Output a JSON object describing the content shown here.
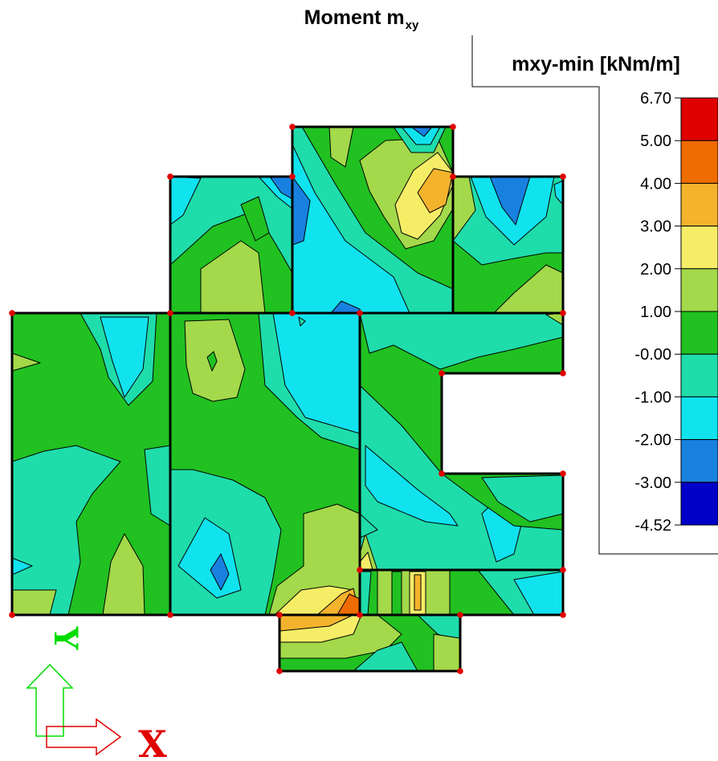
{
  "chart_data": {
    "type": "heatmap",
    "title_main": "Moment m",
    "title_subscript": "xy",
    "legend": {
      "title": "mxy-min [kNm/m]",
      "ticks": [
        "6.70",
        "5.00",
        "4.00",
        "3.00",
        "2.00",
        "1.00",
        "-0.00",
        "-1.00",
        "-2.00",
        "-3.00",
        "-4.52"
      ],
      "bands": [
        {
          "from": 5.0,
          "to": 6.7,
          "color": "#e00000"
        },
        {
          "from": 4.0,
          "to": 5.0,
          "color": "#ef6c00"
        },
        {
          "from": 3.0,
          "to": 4.0,
          "color": "#f4b32c"
        },
        {
          "from": 2.0,
          "to": 3.0,
          "color": "#f6ed67"
        },
        {
          "from": 1.0,
          "to": 2.0,
          "color": "#a3d94a"
        },
        {
          "from": 0.0,
          "to": 1.0,
          "color": "#21c121"
        },
        {
          "from": -1.0,
          "to": 0.0,
          "color": "#1fdcab"
        },
        {
          "from": -2.0,
          "to": -1.0,
          "color": "#10e2ee"
        },
        {
          "from": -3.0,
          "to": -2.0,
          "color": "#1881e0"
        },
        {
          "from": -4.52,
          "to": -3.0,
          "color": "#0000c8"
        }
      ]
    },
    "axes": {
      "x_label": "X",
      "y_label": "Y",
      "x_color": "#e00000",
      "y_color": "#00dd00"
    }
  }
}
